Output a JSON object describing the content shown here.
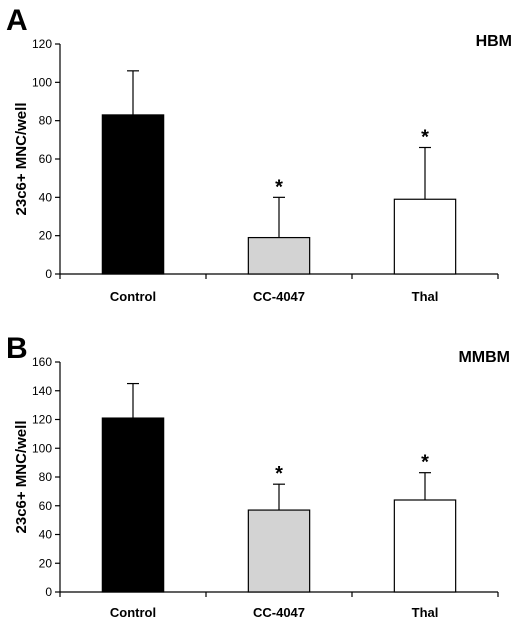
{
  "chart_data": [
    {
      "type": "bar",
      "panel_label": "A",
      "tag": "HBM",
      "ylabel": "23c6+ MNC/well",
      "ylim": [
        0,
        120
      ],
      "yticks": [
        0,
        20,
        40,
        60,
        80,
        100,
        120
      ],
      "categories": [
        "Control",
        "CC-4047",
        "Thal"
      ],
      "values": [
        83,
        19,
        39
      ],
      "errors": [
        23,
        21,
        27
      ],
      "significance": [
        "",
        "*",
        "*"
      ],
      "bar_colors": [
        "#000000",
        "#d3d3d3",
        "#ffffff"
      ]
    },
    {
      "type": "bar",
      "panel_label": "B",
      "tag": "MMBM",
      "ylabel": "23c6+ MNC/well",
      "ylim": [
        0,
        160
      ],
      "yticks": [
        0,
        20,
        40,
        60,
        80,
        100,
        120,
        140,
        160
      ],
      "categories": [
        "Control",
        "CC-4047",
        "Thal"
      ],
      "values": [
        121,
        57,
        64
      ],
      "errors": [
        24,
        18,
        19
      ],
      "significance": [
        "",
        "*",
        "*"
      ],
      "bar_colors": [
        "#000000",
        "#d3d3d3",
        "#ffffff"
      ]
    }
  ]
}
